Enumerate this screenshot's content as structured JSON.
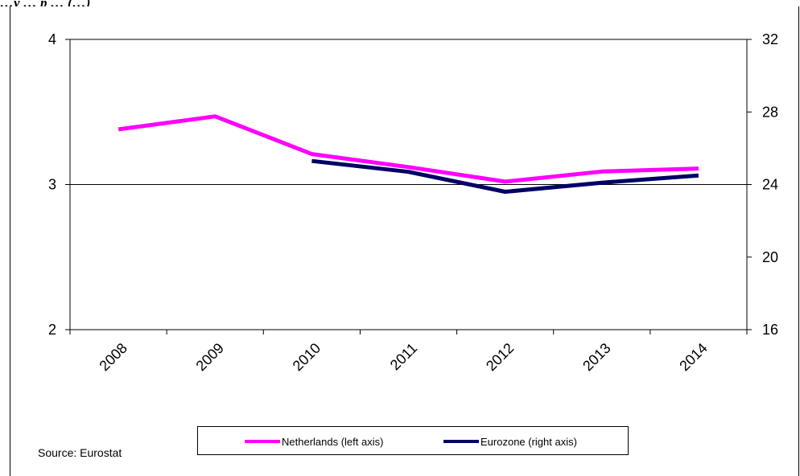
{
  "chart_data": {
    "type": "line",
    "title_fragment": "…y … p … (…)",
    "categories": [
      "2008",
      "2009",
      "2010",
      "2011",
      "2012",
      "2013",
      "2014"
    ],
    "left_axis": {
      "ylim": [
        2,
        4
      ],
      "ticks": [
        "2",
        "3",
        "4"
      ]
    },
    "right_axis": {
      "ylim": [
        16,
        32
      ],
      "ticks": [
        "16",
        "20",
        "24",
        "28",
        "32"
      ]
    },
    "gridline_y_left": 3,
    "series": [
      {
        "name": "Netherlands (left axis)",
        "axis": "left",
        "color": "#ff00ff",
        "values": [
          3.38,
          3.47,
          3.21,
          3.12,
          3.02,
          3.09,
          3.11
        ]
      },
      {
        "name": "Eurozone (right axis)",
        "axis": "right",
        "color": "#000066",
        "values": [
          null,
          null,
          25.3,
          24.7,
          23.6,
          24.1,
          24.5
        ]
      }
    ],
    "legend_position": "bottom",
    "source": "Source: Eurostat"
  }
}
